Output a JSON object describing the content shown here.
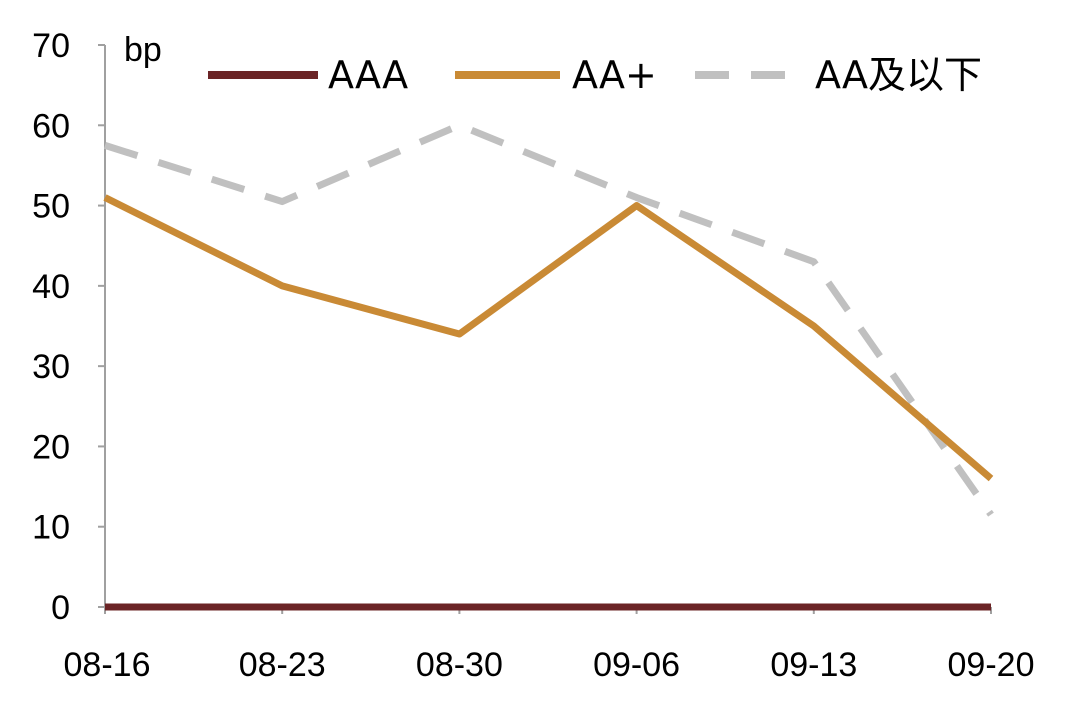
{
  "chart_data": {
    "type": "line",
    "categories": [
      "08-16",
      "08-23",
      "08-30",
      "09-06",
      "09-13",
      "09-20"
    ],
    "ylabel": "bp",
    "ylim": [
      0,
      70
    ],
    "yticks": [
      0,
      10,
      20,
      30,
      40,
      50,
      60,
      70
    ],
    "grid": false,
    "legend_position": "top",
    "series": [
      {
        "name": "AAA",
        "values": [
          0,
          0,
          0,
          0,
          0,
          0
        ],
        "color": "#6b2426",
        "style": "solid"
      },
      {
        "name": "AA+",
        "values": [
          51,
          40,
          34,
          50,
          35,
          16
        ],
        "color": "#c98a35",
        "style": "solid"
      },
      {
        "name": "AA及以下",
        "values": [
          57.5,
          50.5,
          60,
          51,
          43,
          11.5
        ],
        "color": "#c0c0c0",
        "style": "dashed"
      }
    ]
  }
}
